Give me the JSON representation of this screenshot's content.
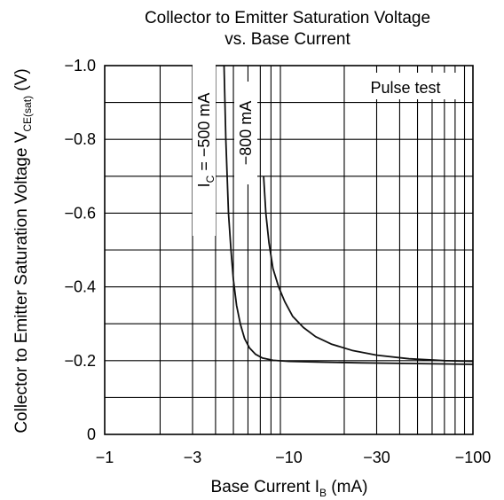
{
  "chart_data": {
    "type": "line",
    "title": "Collector to Emitter Saturation Voltage",
    "subtitle": "vs. Base Current",
    "xlabel": {
      "main": "Base Current  I",
      "sub": "B",
      "unit": "  (mA)"
    },
    "ylabel": {
      "main": "Collector to Emitter Saturation Voltage  V",
      "sub": "CE(sat)",
      "unit": "  (V)"
    },
    "x_scale": "log",
    "xlim": [
      -1,
      -100
    ],
    "ylim": [
      0,
      -1.0
    ],
    "x_ticks": [
      {
        "value": -1,
        "label": "−1"
      },
      {
        "value": -3,
        "label": "−3"
      },
      {
        "value": -10,
        "label": "−10"
      },
      {
        "value": -30,
        "label": "−30"
      },
      {
        "value": -100,
        "label": "−100"
      }
    ],
    "y_ticks": [
      {
        "value": 0,
        "label": "0"
      },
      {
        "value": -0.2,
        "label": "−0.2"
      },
      {
        "value": -0.4,
        "label": "−0.4"
      },
      {
        "value": -0.6,
        "label": "−0.6"
      },
      {
        "value": -0.8,
        "label": "−0.8"
      },
      {
        "value": -1.0,
        "label": "−1.0"
      }
    ],
    "grid": true,
    "annotation": "Pulse test",
    "series": [
      {
        "name": "I_C = −500 mA",
        "label": {
          "main": "I",
          "sub": "C",
          "rest": " = −500 mA"
        },
        "x": [
          -4.45,
          -4.55,
          -4.7,
          -4.85,
          -5.0,
          -5.2,
          -5.45,
          -5.75,
          -6.1,
          -6.6,
          -7.2,
          -8.2,
          -10,
          -15,
          -25,
          -50,
          -100
        ],
        "y": [
          -1.0,
          -0.8,
          -0.6,
          -0.5,
          -0.42,
          -0.35,
          -0.3,
          -0.26,
          -0.235,
          -0.217,
          -0.207,
          -0.201,
          -0.198,
          -0.196,
          -0.194,
          -0.192,
          -0.19
        ]
      },
      {
        "name": "−800 mA",
        "label": {
          "main": "−800 mA"
        },
        "x": [
          -7.3,
          -7.5,
          -7.8,
          -8.2,
          -8.8,
          -9.5,
          -10.5,
          -12,
          -14,
          -17,
          -22,
          -30,
          -45,
          -70,
          -100
        ],
        "y": [
          -0.7,
          -0.6,
          -0.52,
          -0.45,
          -0.4,
          -0.36,
          -0.32,
          -0.29,
          -0.265,
          -0.245,
          -0.228,
          -0.215,
          -0.205,
          -0.2,
          -0.198
        ]
      }
    ]
  }
}
